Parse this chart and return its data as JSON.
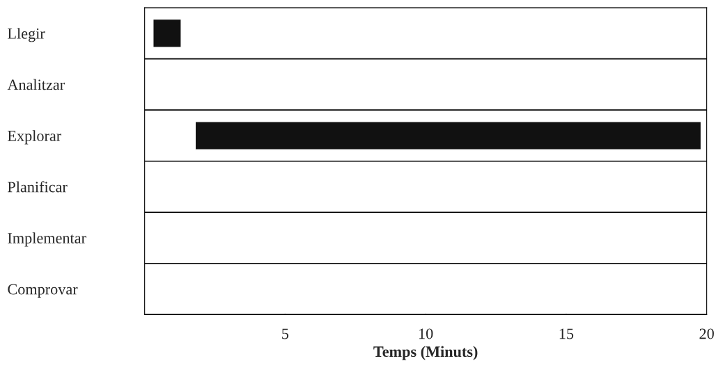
{
  "chart_data": {
    "type": "bar",
    "orientation": "horizontal",
    "xlabel": "Temps (Minuts)",
    "categories": [
      "Llegir",
      "Analitzar",
      "Explorar",
      "Planificar",
      "Implementar",
      "Comprovar"
    ],
    "values": [
      1.0,
      null,
      18.0,
      null,
      null,
      null
    ],
    "base": [
      0.3,
      null,
      1.8,
      null,
      null,
      null
    ],
    "color": "#111111",
    "xlim": [
      0,
      20
    ],
    "xticks": [
      5,
      10,
      15,
      20
    ],
    "grid": false,
    "legend": false
  }
}
